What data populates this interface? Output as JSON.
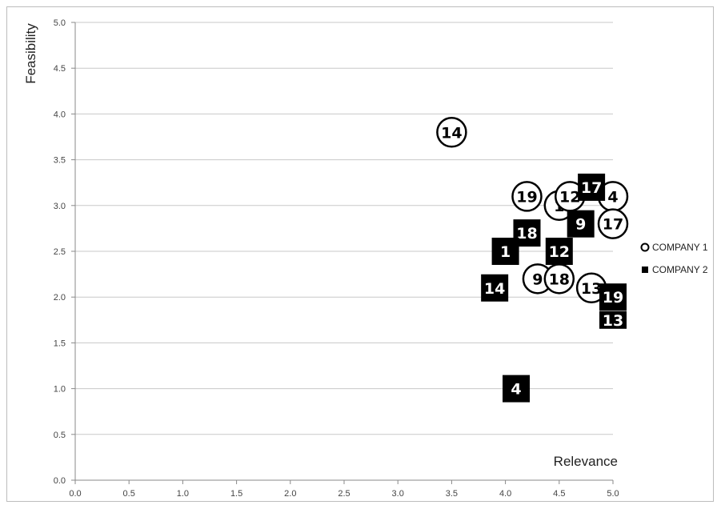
{
  "chart_data": {
    "type": "scatter",
    "xlabel": "Relevance",
    "ylabel": "Feasibility",
    "xlim": [
      0,
      5
    ],
    "ylim": [
      0,
      5
    ],
    "x_ticks": [
      "0.0",
      "0.5",
      "1.0",
      "1.5",
      "2.0",
      "2.5",
      "3.0",
      "3.5",
      "4.0",
      "4.5",
      "5.0"
    ],
    "y_ticks": [
      "0.0",
      "0.5",
      "1.0",
      "1.5",
      "2.0",
      "2.5",
      "3.0",
      "3.5",
      "4.0",
      "4.5",
      "5.0"
    ],
    "grid": "horizontal",
    "legend_position": "right",
    "series": [
      {
        "name": "COMPANY 1",
        "marker": "circle",
        "color": "#000000",
        "points": [
          {
            "label": "14",
            "x": 3.5,
            "y": 3.8
          },
          {
            "label": "19",
            "x": 4.2,
            "y": 3.1
          },
          {
            "label": "1",
            "x": 4.5,
            "y": 3.0
          },
          {
            "label": "12",
            "x": 4.6,
            "y": 3.1
          },
          {
            "label": "4",
            "x": 5.0,
            "y": 3.1
          },
          {
            "label": "17",
            "x": 5.0,
            "y": 2.8
          },
          {
            "label": "9",
            "x": 4.3,
            "y": 2.2
          },
          {
            "label": "18",
            "x": 4.5,
            "y": 2.2
          },
          {
            "label": "13",
            "x": 4.8,
            "y": 2.1
          }
        ]
      },
      {
        "name": "COMPANY 2",
        "marker": "square",
        "color": "#000000",
        "points": [
          {
            "label": "17",
            "x": 4.8,
            "y": 3.2
          },
          {
            "label": "9",
            "x": 4.7,
            "y": 2.8
          },
          {
            "label": "18",
            "x": 4.2,
            "y": 2.7
          },
          {
            "label": "1",
            "x": 4.0,
            "y": 2.5
          },
          {
            "label": "12",
            "x": 4.5,
            "y": 2.5
          },
          {
            "label": "14",
            "x": 3.9,
            "y": 2.1
          },
          {
            "label": "19",
            "x": 5.0,
            "y": 2.0
          },
          {
            "label": "13",
            "x": 5.0,
            "y": 1.75
          },
          {
            "label": "4",
            "x": 4.1,
            "y": 1.0
          }
        ]
      }
    ]
  }
}
